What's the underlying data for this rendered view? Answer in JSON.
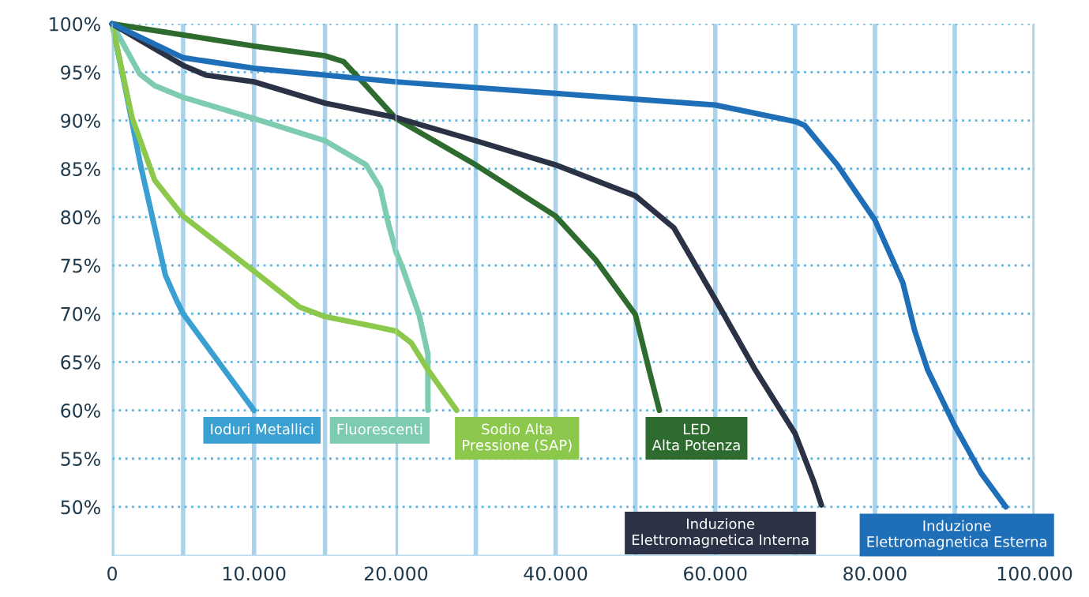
{
  "chart_data": [
    {
      "type": "line",
      "xlim": [
        0,
        20000
      ],
      "ylim": [
        45,
        100
      ],
      "tick_labels": true,
      "xticks": [
        {
          "value": 0,
          "label": "0"
        },
        {
          "value": 5000,
          "label": null
        },
        {
          "value": 10000,
          "label": "10.000"
        },
        {
          "value": 15000,
          "label": null
        }
      ],
      "yticks": [
        {
          "value": 50,
          "label": "50%"
        },
        {
          "value": 55,
          "label": "55%"
        },
        {
          "value": 60,
          "label": "60%"
        },
        {
          "value": 65,
          "label": "65%"
        },
        {
          "value": 70,
          "label": "70%"
        },
        {
          "value": 75,
          "label": "75%"
        },
        {
          "value": 80,
          "label": "80%"
        },
        {
          "value": 85,
          "label": "85%"
        },
        {
          "value": 90,
          "label": "90%"
        },
        {
          "value": 95,
          "label": "95%"
        },
        {
          "value": 100,
          "label": "100%"
        }
      ],
      "grid": true,
      "legend": false,
      "marker": "none",
      "line_style": "solid",
      "series": [
        {
          "name": "Ioduri Metallici",
          "color": "#3a9fd1",
          "x": [
            0,
            1000,
            2000,
            3000,
            3750,
            4500,
            5000,
            10000
          ],
          "values": [
            100,
            92.8,
            85.4,
            78.9,
            74,
            71.5,
            70,
            60
          ]
        },
        {
          "color": "#7dcbb0",
          "x": [
            0,
            1950,
            3000,
            5000,
            10000,
            15000,
            17900,
            18900,
            19400,
            20000
          ],
          "values": [
            100,
            94.8,
            93.6,
            92.4,
            90.2,
            87.9,
            85.4,
            83,
            79.7,
            76.4
          ]
        },
        {
          "color": "#8cc84b",
          "x": [
            0,
            1400,
            3000,
            5000,
            10000,
            13200,
            15000,
            18400,
            20000
          ],
          "values": [
            100,
            90.3,
            83.8,
            80.1,
            74.4,
            70.7,
            69.7,
            68.7,
            68.2
          ]
        },
        {
          "color": "#2e6b2e",
          "x": [
            0,
            10000,
            15000,
            16300,
            17900,
            20000
          ],
          "values": [
            100,
            97.7,
            96.7,
            96.1,
            93.6,
            90.2
          ]
        },
        {
          "color": "#2b3245",
          "x": [
            0,
            5000,
            6600,
            10000,
            15000,
            20000
          ],
          "values": [
            100,
            95.7,
            94.7,
            94,
            91.8,
            90.3
          ]
        },
        {
          "color": "#1f6fb8",
          "x": [
            0,
            5000,
            10000,
            20000
          ],
          "values": [
            100,
            96.5,
            95.4,
            94
          ]
        }
      ]
    },
    {
      "type": "line",
      "xlim": [
        20000,
        100000
      ],
      "ylim": [
        45,
        100
      ],
      "tick_labels": "x",
      "xticks": [
        {
          "value": 20000,
          "label": "20.000"
        },
        {
          "value": 30000,
          "label": null
        },
        {
          "value": 40000,
          "label": "40.000"
        },
        {
          "value": 50000,
          "label": null
        },
        {
          "value": 60000,
          "label": "60.000"
        },
        {
          "value": 70000,
          "label": null
        },
        {
          "value": 80000,
          "label": "80.000"
        },
        {
          "value": 90000,
          "label": null
        },
        {
          "value": 100000,
          "label": "100.000"
        }
      ],
      "yticks": [
        50,
        55,
        60,
        65,
        70,
        75,
        80,
        85,
        90,
        95,
        100
      ],
      "grid": true,
      "legend": false,
      "marker": "none",
      "line_style": "solid",
      "series": [
        {
          "name": "Fluorescenti",
          "color": "#7dcbb0",
          "x": [
            20000,
            20800,
            22900,
            24000,
            24000
          ],
          "values": [
            76.4,
            74.8,
            69.9,
            65.8,
            60
          ]
        },
        {
          "name": "Sodio Alta\nPressione (SAP)",
          "color": "#8cc84b",
          "x": [
            20000,
            21900,
            24000,
            27600
          ],
          "values": [
            68.2,
            67,
            64.2,
            60
          ]
        },
        {
          "name": "LED\nAlta Potenza",
          "color": "#2e6b2e",
          "x": [
            20000,
            30000,
            40000,
            45000,
            50000,
            51700,
            53000
          ],
          "values": [
            90.2,
            85.4,
            80.1,
            75.6,
            69.9,
            64.2,
            60
          ]
        },
        {
          "name": "Induzione\nElettromagnetica Interna",
          "color": "#2b3245",
          "x": [
            20000,
            30000,
            40000,
            50000,
            54800,
            60000,
            65000,
            70000,
            72300,
            73300
          ],
          "values": [
            90.3,
            87.9,
            85.4,
            82.2,
            78.9,
            71.5,
            64.2,
            57.6,
            52.7,
            50.2
          ]
        },
        {
          "name": "Induzione\nElettromagnetica Esterna",
          "color": "#1f6fb8",
          "x": [
            20000,
            40000,
            60000,
            70000,
            71200,
            75300,
            80000,
            83500,
            85000,
            86600,
            90000,
            93300,
            96400
          ],
          "values": [
            94,
            92.8,
            91.6,
            89.9,
            89.5,
            85.4,
            79.7,
            73.2,
            68.2,
            64.2,
            58.4,
            53.5,
            50
          ]
        }
      ]
    }
  ]
}
